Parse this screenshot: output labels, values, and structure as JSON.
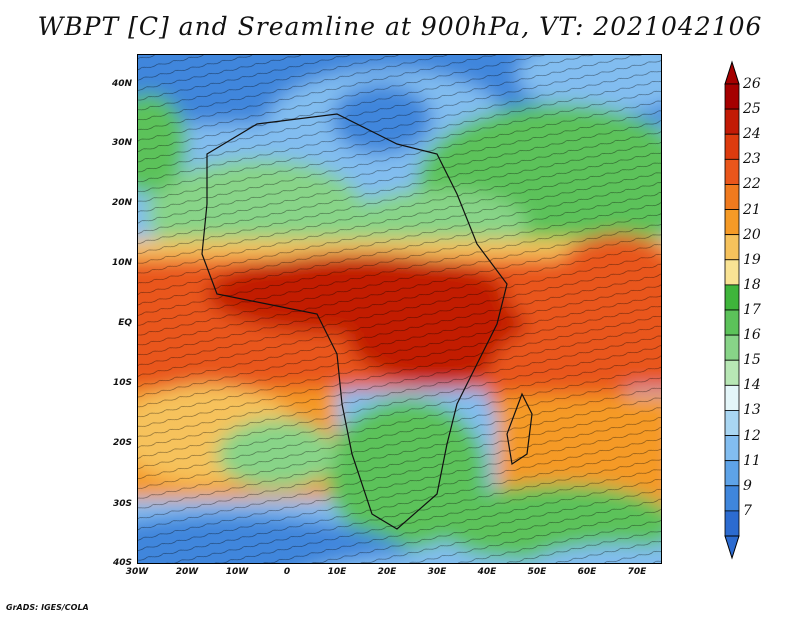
{
  "title": "WBPT [C] and Sreamline at 900hPa, VT: 2021042106",
  "credit": "GrADS: IGES/COLA",
  "lat_labels": [
    "40N",
    "30N",
    "20N",
    "10N",
    "EQ",
    "10S",
    "20S",
    "30S",
    "40S"
  ],
  "lon_labels": [
    "30W",
    "20W",
    "10W",
    "0",
    "10E",
    "20E",
    "30E",
    "40E",
    "50E",
    "60E",
    "70E"
  ],
  "colorbar": {
    "labels": [
      "26",
      "25",
      "24",
      "23",
      "22",
      "21",
      "20",
      "19",
      "18",
      "17",
      "16",
      "15",
      "14",
      "13",
      "12",
      "11",
      "9",
      "7"
    ],
    "colors": [
      "#a50000",
      "#c21a05",
      "#dd3b0e",
      "#e9561b",
      "#f07a1e",
      "#f59a26",
      "#f6c25c",
      "#f9e394",
      "#3fb53b",
      "#5cc25a",
      "#88d488",
      "#b8e7b5",
      "#e4f6f9",
      "#a9d6f2",
      "#82bdf0",
      "#5ea3e8",
      "#3f86dc",
      "#2c6bd0"
    ]
  },
  "map_colors": {
    "cold_ocean": "#3f86dc",
    "cool": "#82bdf0",
    "green": "#5cc25a",
    "light_green": "#88d488",
    "warm": "#f6c25c",
    "hot": "#e9561b",
    "hottest": "#c21a05"
  }
}
